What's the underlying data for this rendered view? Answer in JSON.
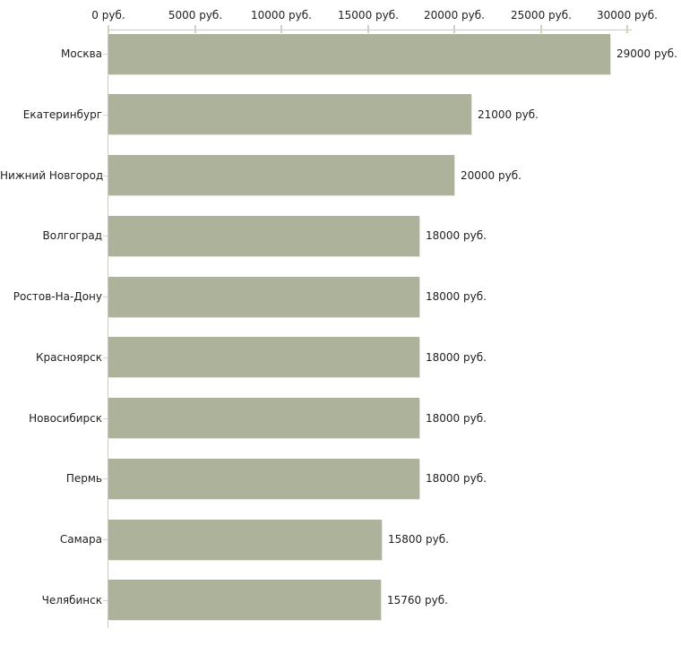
{
  "chart_data": {
    "type": "bar",
    "orientation": "horizontal",
    "title": "",
    "xlabel": "",
    "ylabel": "",
    "grid": false,
    "legend": false,
    "background": "#ffffff",
    "bar_color": "#adb39b",
    "axis_line_color": "#c9c9c2",
    "tick_color": "#d2d2b8",
    "text_color": "#1e1e1e",
    "categories": [
      "Москва",
      "Екатеринбург",
      "Нижний Новгород",
      "Волгоград",
      "Ростов-На-Дону",
      "Красноярск",
      "Новосибирск",
      "Пермь",
      "Самара",
      "Челябинск"
    ],
    "values": [
      29000,
      21000,
      20000,
      18000,
      18000,
      18000,
      18000,
      18000,
      15800,
      15760
    ],
    "value_labels": [
      "29000 руб.",
      "21000 руб.",
      "20000 руб.",
      "18000 руб.",
      "18000 руб.",
      "18000 руб.",
      "18000 руб.",
      "18000 руб.",
      "15800 руб.",
      "15760 руб."
    ],
    "x_axis": {
      "position": "top",
      "xlim": [
        0,
        30000
      ],
      "tick_values": [
        0,
        5000,
        10000,
        15000,
        20000,
        25000,
        30000
      ],
      "tick_labels": [
        "0 руб.",
        "5000 руб.",
        "10000 руб.",
        "15000 руб.",
        "20000 руб.",
        "25000 руб.",
        "30000 руб."
      ]
    }
  }
}
